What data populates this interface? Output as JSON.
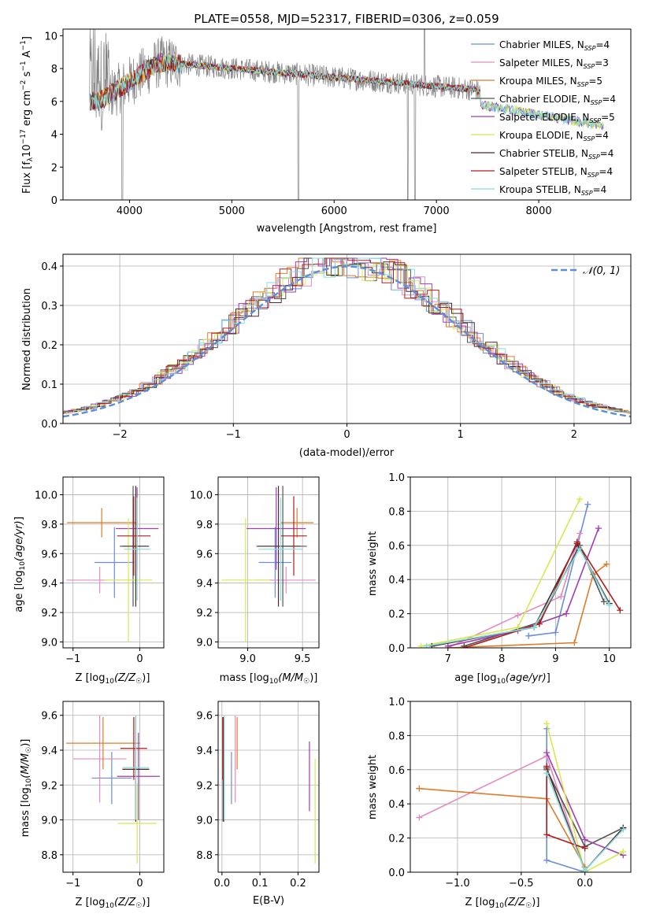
{
  "colors": {
    "Chabrier MILES": "#6a8edb",
    "Salpeter MILES": "#e58bbd",
    "Kroupa MILES": "#e07b2a",
    "Chabrier ELODIE": "#555555",
    "Salpeter ELODIE": "#a03cb4",
    "Kroupa ELODIE": "#d8e84e",
    "Chabrier STELIB": "#4b2b2b",
    "Salpeter STELIB": "#b31b1b",
    "Kroupa STELIB": "#85dede",
    "gaussian": "#5b8fd8",
    "grid": "#b0b0b0",
    "data": "#808080"
  },
  "chart_data": [
    {
      "id": "spectrum",
      "type": "line",
      "title": "PLATE=0558, MJD=52317, FIBERID=0306, z=0.059",
      "xlabel": "wavelength [Angstrom, rest frame]",
      "ylabel": "Flux [f_λ 10^-17 erg cm^-2 s^-1 A^-1]",
      "xlim": [
        3350,
        8900
      ],
      "ylim": [
        0,
        10.4
      ],
      "xticks": [
        "4000",
        "5000",
        "6000",
        "7000",
        "8000"
      ],
      "yticks": [
        "0",
        "2",
        "4",
        "6",
        "8",
        "10"
      ],
      "legend": [
        "Chabrier MILES",
        "Salpeter MILES",
        "Kroupa MILES",
        "Chabrier ELODIE",
        "Salpeter ELODIE",
        "Kroupa ELODIE",
        "Chabrier STELIB",
        "Salpeter STELIB",
        "Kroupa STELIB"
      ],
      "legend_nssp": [
        "4",
        "3",
        "5",
        "4",
        "5",
        "4",
        "4",
        "4",
        "4"
      ],
      "legend_position": "top-right",
      "grid": false
    },
    {
      "id": "residuals",
      "type": "step-histogram",
      "xlabel": "(data-model)/error",
      "ylabel": "Normed distribution",
      "xlim": [
        -2.5,
        2.5
      ],
      "ylim": [
        0,
        0.43
      ],
      "xticks": [
        "−2",
        "−1",
        "0",
        "1",
        "2"
      ],
      "yticks": [
        "0.0",
        "0.1",
        "0.2",
        "0.3",
        "0.4"
      ],
      "legend": [
        "𝒩(0, 1)"
      ],
      "legend_position": "top-right",
      "grid": true
    },
    {
      "id": "age-vs-Z",
      "type": "errorbar",
      "xlabel": "Z [log10(Z/Z☉)]",
      "ylabel": "age  [log10(age/yr)]",
      "xlim": [
        -1.15,
        0.36
      ],
      "ylim": [
        8.96,
        10.12
      ],
      "xticks": [
        "−1",
        "0"
      ],
      "yticks": [
        "9.0",
        "9.2",
        "9.4",
        "9.6",
        "9.8",
        "10.0"
      ],
      "grid": true,
      "series": [
        {
          "name": "Chabrier MILES",
          "x": -0.38,
          "xerr": 0.3,
          "y": 9.54,
          "yerr": 0.24
        },
        {
          "name": "Salpeter MILES",
          "x": -0.6,
          "xerr": 0.5,
          "y": 9.42,
          "yerr": 0.09
        },
        {
          "name": "Kroupa MILES",
          "x": -0.57,
          "xerr": 0.52,
          "y": 9.81,
          "yerr": 0.1
        },
        {
          "name": "Chabrier ELODIE",
          "x": -0.1,
          "xerr": 0.2,
          "y": 9.65,
          "yerr": 0.41
        },
        {
          "name": "Salpeter ELODIE",
          "x": -0.04,
          "xerr": 0.32,
          "y": 9.77,
          "yerr": 0.28
        },
        {
          "name": "Kroupa ELODIE",
          "x": -0.17,
          "xerr": 0.36,
          "y": 9.42,
          "yerr": 0.42
        },
        {
          "name": "Chabrier STELIB",
          "x": -0.06,
          "xerr": 0.2,
          "y": 9.65,
          "yerr": 0.41
        },
        {
          "name": "Salpeter STELIB",
          "x": -0.09,
          "xerr": 0.25,
          "y": 9.72,
          "yerr": 0.27
        },
        {
          "name": "Kroupa STELIB",
          "x": -0.04,
          "xerr": 0.2,
          "y": 9.63,
          "yerr": 0.35
        }
      ]
    },
    {
      "id": "age-vs-mass",
      "type": "errorbar",
      "xlabel": "mass [log10(M/M☉)]",
      "xlim": [
        8.73,
        9.65
      ],
      "ylim": [
        8.96,
        10.12
      ],
      "xticks": [
        "9.0",
        "9.5"
      ],
      "yticks": [
        "9.0",
        "9.2",
        "9.4",
        "9.6",
        "9.8",
        "10.0"
      ],
      "grid": true,
      "series": [
        {
          "name": "Chabrier MILES",
          "x": 9.25,
          "xerr": 0.15,
          "y": 9.54,
          "yerr": 0.24
        },
        {
          "name": "Salpeter MILES",
          "x": 9.35,
          "xerr": 0.27,
          "y": 9.42,
          "yerr": 0.09
        },
        {
          "name": "Kroupa MILES",
          "x": 9.45,
          "xerr": 0.15,
          "y": 9.81,
          "yerr": 0.1
        },
        {
          "name": "Chabrier ELODIE",
          "x": 9.32,
          "xerr": 0.22,
          "y": 9.65,
          "yerr": 0.41
        },
        {
          "name": "Salpeter ELODIE",
          "x": 9.26,
          "xerr": 0.27,
          "y": 9.77,
          "yerr": 0.28
        },
        {
          "name": "Kroupa ELODIE",
          "x": 8.98,
          "xerr": 0.22,
          "y": 9.42,
          "yerr": 0.42
        },
        {
          "name": "Chabrier STELIB",
          "x": 9.28,
          "xerr": 0.2,
          "y": 9.65,
          "yerr": 0.41
        },
        {
          "name": "Salpeter STELIB",
          "x": 9.42,
          "xerr": 0.12,
          "y": 9.72,
          "yerr": 0.27
        },
        {
          "name": "Kroupa STELIB",
          "x": 9.3,
          "xerr": 0.2,
          "y": 9.63,
          "yerr": 0.35
        }
      ]
    },
    {
      "id": "weight-vs-age",
      "type": "line",
      "xlabel": "age  [log10(age/yr)]",
      "ylabel": "mass weight",
      "xlim": [
        6.3,
        10.4
      ],
      "ylim": [
        0,
        1.0
      ],
      "xticks": [
        "7",
        "8",
        "9",
        "10"
      ],
      "yticks": [
        "0.0",
        "0.2",
        "0.4",
        "0.6",
        "0.8",
        "1.0"
      ],
      "grid": true,
      "series": [
        {
          "name": "Chabrier MILES",
          "x": [
            8.5,
            9.0,
            9.6
          ],
          "y": [
            0.07,
            0.09,
            0.84
          ]
        },
        {
          "name": "Salpeter MILES",
          "x": [
            7.0,
            8.3,
            9.1,
            9.45
          ],
          "y": [
            0.0,
            0.19,
            0.3,
            0.67
          ]
        },
        {
          "name": "Kroupa MILES",
          "x": [
            7.0,
            9.35,
            9.7,
            9.95
          ],
          "y": [
            0.0,
            0.03,
            0.43,
            0.49
          ]
        },
        {
          "name": "Chabrier ELODIE",
          "x": [
            7.3,
            8.7,
            9.45,
            9.9
          ],
          "y": [
            0.01,
            0.15,
            0.6,
            0.27
          ]
        },
        {
          "name": "Salpeter ELODIE",
          "x": [
            7.0,
            8.3,
            9.2,
            9.8
          ],
          "y": [
            0.01,
            0.1,
            0.2,
            0.7
          ]
        },
        {
          "name": "Kroupa ELODIE",
          "x": [
            6.5,
            8.3,
            9.45
          ],
          "y": [
            0.01,
            0.12,
            0.87
          ]
        },
        {
          "name": "Chabrier STELIB",
          "x": [
            6.7,
            8.6,
            9.4,
            10.0
          ],
          "y": [
            0.01,
            0.12,
            0.61,
            0.26
          ]
        },
        {
          "name": "Salpeter STELIB",
          "x": [
            7.3,
            8.7,
            9.4,
            10.2
          ],
          "y": [
            0.0,
            0.14,
            0.62,
            0.22
          ]
        },
        {
          "name": "Kroupa STELIB",
          "x": [
            6.6,
            8.6,
            9.45,
            10.0
          ],
          "y": [
            0.01,
            0.12,
            0.58,
            0.25
          ]
        }
      ]
    },
    {
      "id": "mass-vs-Z",
      "type": "errorbar",
      "xlabel": "Z [log10(Z/Z☉)]",
      "ylabel": "mass [log10(M/M☉)]",
      "xlim": [
        -1.15,
        0.36
      ],
      "ylim": [
        8.7,
        9.68
      ],
      "xticks": [
        "−1",
        "0"
      ],
      "yticks": [
        "8.8",
        "9.0",
        "9.2",
        "9.4",
        "9.6"
      ],
      "grid": true,
      "series": [
        {
          "name": "Chabrier MILES",
          "x": -0.42,
          "xerr": 0.3,
          "y": 9.24,
          "yerr": 0.15
        },
        {
          "name": "Salpeter MILES",
          "x": -0.6,
          "xerr": 0.4,
          "y": 9.35,
          "yerr": 0.25
        },
        {
          "name": "Kroupa MILES",
          "x": -0.55,
          "xerr": 0.55,
          "y": 9.44,
          "yerr": 0.15
        },
        {
          "name": "Chabrier ELODIE",
          "x": -0.06,
          "xerr": 0.2,
          "y": 9.29,
          "yerr": 0.3
        },
        {
          "name": "Salpeter ELODIE",
          "x": -0.02,
          "xerr": 0.32,
          "y": 9.25,
          "yerr": 0.25
        },
        {
          "name": "Kroupa ELODIE",
          "x": -0.04,
          "xerr": 0.29,
          "y": 8.98,
          "yerr": 0.23
        },
        {
          "name": "Chabrier STELIB",
          "x": -0.06,
          "xerr": 0.2,
          "y": 9.29,
          "yerr": 0.3
        },
        {
          "name": "Salpeter STELIB",
          "x": -0.09,
          "xerr": 0.2,
          "y": 9.41,
          "yerr": 0.18
        },
        {
          "name": "Kroupa STELIB",
          "x": -0.06,
          "xerr": 0.2,
          "y": 9.3,
          "yerr": 0.3
        }
      ]
    },
    {
      "id": "mass-vs-ebv",
      "type": "errorbar",
      "xlabel": "E(B-V)",
      "xlim": [
        -0.01,
        0.255
      ],
      "ylim": [
        8.7,
        9.68
      ],
      "xticks": [
        "0.0",
        "0.1",
        "0.2"
      ],
      "yticks": [
        "8.8",
        "9.0",
        "9.2",
        "9.4",
        "9.6"
      ],
      "grid": true,
      "series": [
        {
          "name": "Chabrier MILES",
          "x": 0.025,
          "y": 9.24,
          "yerr": 0.15
        },
        {
          "name": "Salpeter MILES",
          "x": 0.035,
          "y": 9.35,
          "yerr": 0.25
        },
        {
          "name": "Kroupa MILES",
          "x": 0.04,
          "y": 9.44,
          "yerr": 0.15
        },
        {
          "name": "Chabrier ELODIE",
          "x": 0.005,
          "y": 9.29,
          "yerr": 0.3
        },
        {
          "name": "Salpeter ELODIE",
          "x": 0.23,
          "y": 9.25,
          "yerr": 0.2
        },
        {
          "name": "Kroupa ELODIE",
          "x": 0.245,
          "y": 9.05,
          "yerr": 0.3
        },
        {
          "name": "Chabrier STELIB",
          "x": 0.003,
          "y": 9.29,
          "yerr": 0.3
        },
        {
          "name": "Salpeter STELIB",
          "x": 0.002,
          "y": 9.41,
          "yerr": 0.18
        },
        {
          "name": "Kroupa STELIB",
          "x": 0.006,
          "y": 9.3,
          "yerr": 0.3
        }
      ]
    },
    {
      "id": "weight-vs-Z",
      "type": "line",
      "xlabel": "Z [log10(Z/Z☉)]",
      "ylabel": "mass weight",
      "xlim": [
        -1.37,
        0.36
      ],
      "ylim": [
        0,
        1.0
      ],
      "xticks": [
        "−1.0",
        "−0.5",
        "0.0"
      ],
      "yticks": [
        "0.0",
        "0.2",
        "0.4",
        "0.6",
        "0.8",
        "1.0"
      ],
      "grid": true,
      "series": [
        {
          "name": "Chabrier MILES",
          "x": [
            -0.3,
            -0.3,
            0.0
          ],
          "y": [
            0.84,
            0.07,
            0.0
          ]
        },
        {
          "name": "Salpeter MILES",
          "x": [
            -1.3,
            -0.3,
            0.0
          ],
          "y": [
            0.32,
            0.68,
            0.0
          ]
        },
        {
          "name": "Kroupa MILES",
          "x": [
            -1.3,
            -0.3,
            0.0
          ],
          "y": [
            0.49,
            0.43,
            0.03
          ]
        },
        {
          "name": "Chabrier ELODIE",
          "x": [
            -0.3,
            0.0,
            0.3
          ],
          "y": [
            0.6,
            0.15,
            0.26
          ]
        },
        {
          "name": "Salpeter ELODIE",
          "x": [
            -0.3,
            0.0,
            0.3
          ],
          "y": [
            0.7,
            0.19,
            0.1
          ]
        },
        {
          "name": "Kroupa ELODIE",
          "x": [
            -0.3,
            0.0,
            0.3
          ],
          "y": [
            0.87,
            0.0,
            0.12
          ]
        },
        {
          "name": "Chabrier STELIB",
          "x": [
            -0.3,
            0.0,
            0.3
          ],
          "y": [
            0.61,
            0.01,
            0.26
          ]
        },
        {
          "name": "Salpeter STELIB",
          "x": [
            -0.3,
            -0.3,
            0.0
          ],
          "y": [
            0.62,
            0.22,
            0.14
          ]
        },
        {
          "name": "Kroupa STELIB",
          "x": [
            -0.3,
            0.0,
            0.3
          ],
          "y": [
            0.58,
            0.01,
            0.25
          ]
        }
      ]
    }
  ]
}
